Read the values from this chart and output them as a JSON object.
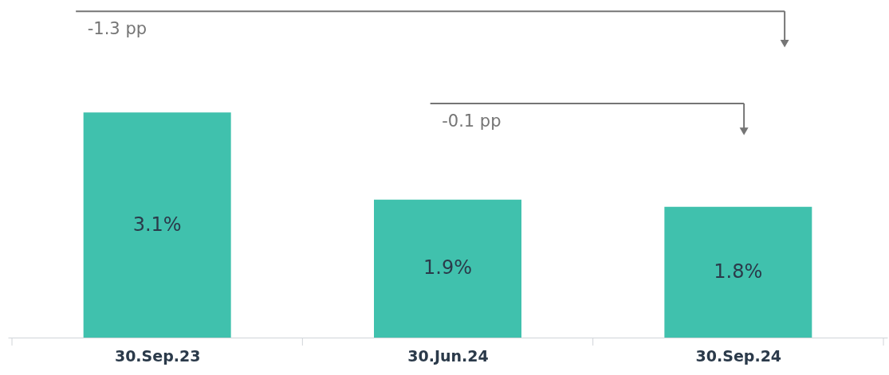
{
  "chart_data": {
    "type": "bar",
    "categories": [
      "30.Sep.23",
      "30.Jun.24",
      "30.Sep.24"
    ],
    "values": [
      3.1,
      1.9,
      1.8
    ],
    "value_labels": [
      "3.1%",
      "1.9%",
      "1.8%"
    ],
    "color": "#40c1ad",
    "annotations": [
      "-1.3 pp",
      "-0.1 pp"
    ],
    "grid": false
  }
}
